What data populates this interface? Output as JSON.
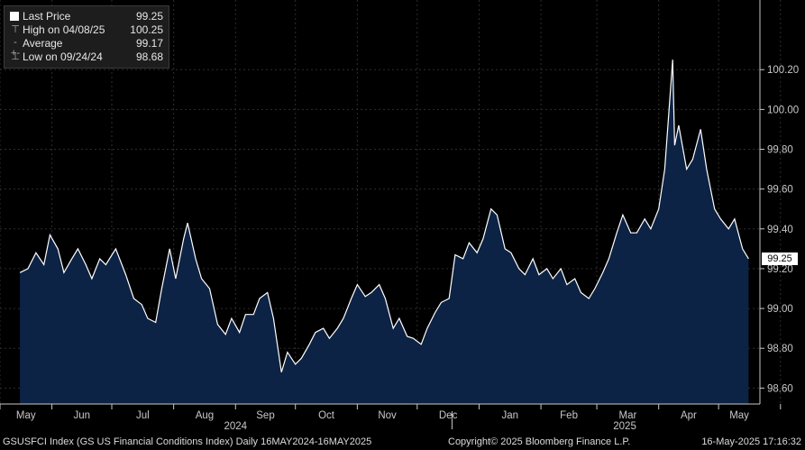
{
  "legend": {
    "last": {
      "label": "Last Price",
      "value": "99.25"
    },
    "high": {
      "label": "High on 04/08/25",
      "value": "100.25"
    },
    "avg": {
      "label": "Average",
      "value": "99.17"
    },
    "low": {
      "label": "Low on 09/24/24",
      "value": "98.68"
    }
  },
  "footer": {
    "left": "GSUSFCI Index (GS US Financial Conditions Index)  Daily 16MAY2024-16MAY2025",
    "center": "Copyright© 2025 Bloomberg Finance L.P.",
    "right": "16-May-2025 17:16:32"
  },
  "colors": {
    "background": "#000000",
    "area": "#0d2345",
    "line": "#ffffff",
    "grid": "#2e2e2e",
    "axis": "#c8c8c8"
  },
  "chart_data": {
    "type": "area",
    "title": "",
    "series": [
      {
        "name": "Last Price"
      }
    ],
    "x_range": [
      "2024-05-16",
      "2025-05-16"
    ],
    "ylim": [
      98.52,
      100.55
    ],
    "y_ticks": [
      98.6,
      98.8,
      99.0,
      99.2,
      99.4,
      99.6,
      99.8,
      100.0,
      100.2
    ],
    "grid": true,
    "legend_position": "top-left",
    "last_value_label": "99.25",
    "x_month_labels": [
      "May",
      "Jun",
      "Jul",
      "Aug",
      "Sep",
      "Oct",
      "Nov",
      "Dec",
      "Jan",
      "Feb",
      "Mar",
      "Apr",
      "May"
    ],
    "x_year_labels": [
      "2024",
      "2025"
    ],
    "points": [
      [
        "2024-05-16",
        99.18
      ],
      [
        "2024-05-20",
        99.2
      ],
      [
        "2024-05-24",
        99.28
      ],
      [
        "2024-05-28",
        99.22
      ],
      [
        "2024-05-31",
        99.37
      ],
      [
        "2024-06-04",
        99.3
      ],
      [
        "2024-06-07",
        99.18
      ],
      [
        "2024-06-11",
        99.25
      ],
      [
        "2024-06-14",
        99.3
      ],
      [
        "2024-06-18",
        99.22
      ],
      [
        "2024-06-21",
        99.15
      ],
      [
        "2024-06-25",
        99.25
      ],
      [
        "2024-06-28",
        99.22
      ],
      [
        "2024-07-03",
        99.3
      ],
      [
        "2024-07-08",
        99.17
      ],
      [
        "2024-07-12",
        99.05
      ],
      [
        "2024-07-16",
        99.02
      ],
      [
        "2024-07-19",
        98.95
      ],
      [
        "2024-07-23",
        98.93
      ],
      [
        "2024-07-26",
        99.1
      ],
      [
        "2024-07-30",
        99.3
      ],
      [
        "2024-08-02",
        99.15
      ],
      [
        "2024-08-06",
        99.35
      ],
      [
        "2024-08-08",
        99.43
      ],
      [
        "2024-08-12",
        99.25
      ],
      [
        "2024-08-15",
        99.15
      ],
      [
        "2024-08-19",
        99.1
      ],
      [
        "2024-08-23",
        98.92
      ],
      [
        "2024-08-27",
        98.87
      ],
      [
        "2024-08-30",
        98.95
      ],
      [
        "2024-09-03",
        98.88
      ],
      [
        "2024-09-06",
        98.97
      ],
      [
        "2024-09-10",
        98.97
      ],
      [
        "2024-09-13",
        99.05
      ],
      [
        "2024-09-17",
        99.08
      ],
      [
        "2024-09-20",
        98.95
      ],
      [
        "2024-09-24",
        98.68
      ],
      [
        "2024-09-27",
        98.78
      ],
      [
        "2024-10-01",
        98.72
      ],
      [
        "2024-10-04",
        98.75
      ],
      [
        "2024-10-08",
        98.82
      ],
      [
        "2024-10-11",
        98.88
      ],
      [
        "2024-10-15",
        98.9
      ],
      [
        "2024-10-18",
        98.85
      ],
      [
        "2024-10-22",
        98.9
      ],
      [
        "2024-10-25",
        98.95
      ],
      [
        "2024-10-29",
        99.05
      ],
      [
        "2024-11-01",
        99.12
      ],
      [
        "2024-11-05",
        99.06
      ],
      [
        "2024-11-08",
        99.08
      ],
      [
        "2024-11-12",
        99.12
      ],
      [
        "2024-11-15",
        99.05
      ],
      [
        "2024-11-19",
        98.9
      ],
      [
        "2024-11-22",
        98.95
      ],
      [
        "2024-11-26",
        98.86
      ],
      [
        "2024-11-29",
        98.85
      ],
      [
        "2024-12-03",
        98.82
      ],
      [
        "2024-12-06",
        98.9
      ],
      [
        "2024-12-10",
        98.98
      ],
      [
        "2024-12-13",
        99.03
      ],
      [
        "2024-12-17",
        99.05
      ],
      [
        "2024-12-20",
        99.27
      ],
      [
        "2024-12-24",
        99.25
      ],
      [
        "2024-12-27",
        99.33
      ],
      [
        "2024-12-31",
        99.28
      ],
      [
        "2025-01-03",
        99.35
      ],
      [
        "2025-01-07",
        99.5
      ],
      [
        "2025-01-10",
        99.47
      ],
      [
        "2025-01-14",
        99.3
      ],
      [
        "2025-01-17",
        99.28
      ],
      [
        "2025-01-21",
        99.2
      ],
      [
        "2025-01-24",
        99.17
      ],
      [
        "2025-01-28",
        99.25
      ],
      [
        "2025-01-31",
        99.17
      ],
      [
        "2025-02-04",
        99.2
      ],
      [
        "2025-02-07",
        99.15
      ],
      [
        "2025-02-11",
        99.2
      ],
      [
        "2025-02-14",
        99.12
      ],
      [
        "2025-02-18",
        99.15
      ],
      [
        "2025-02-21",
        99.08
      ],
      [
        "2025-02-25",
        99.05
      ],
      [
        "2025-02-28",
        99.1
      ],
      [
        "2025-03-04",
        99.18
      ],
      [
        "2025-03-07",
        99.25
      ],
      [
        "2025-03-11",
        99.38
      ],
      [
        "2025-03-14",
        99.47
      ],
      [
        "2025-03-18",
        99.38
      ],
      [
        "2025-03-21",
        99.38
      ],
      [
        "2025-03-25",
        99.45
      ],
      [
        "2025-03-28",
        99.4
      ],
      [
        "2025-04-01",
        99.5
      ],
      [
        "2025-04-04",
        99.7
      ],
      [
        "2025-04-08",
        100.25
      ],
      [
        "2025-04-09",
        99.82
      ],
      [
        "2025-04-11",
        99.92
      ],
      [
        "2025-04-15",
        99.7
      ],
      [
        "2025-04-18",
        99.75
      ],
      [
        "2025-04-22",
        99.9
      ],
      [
        "2025-04-25",
        99.7
      ],
      [
        "2025-04-29",
        99.5
      ],
      [
        "2025-05-02",
        99.45
      ],
      [
        "2025-05-06",
        99.4
      ],
      [
        "2025-05-09",
        99.45
      ],
      [
        "2025-05-13",
        99.3
      ],
      [
        "2025-05-16",
        99.25
      ]
    ]
  }
}
